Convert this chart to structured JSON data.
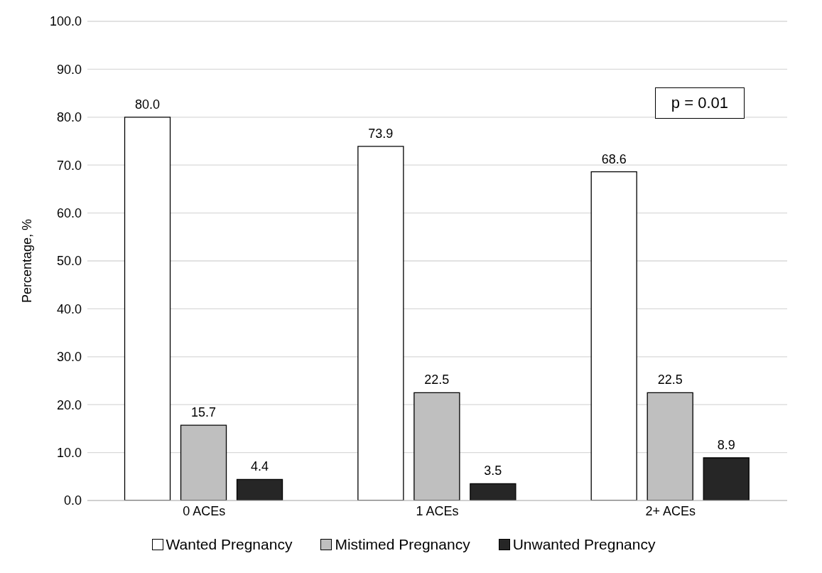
{
  "chart_data": {
    "type": "bar",
    "ylabel": "Percentage, %",
    "categories": [
      "0 ACEs",
      "1 ACEs",
      "2+ ACEs"
    ],
    "series": [
      {
        "name": "Wanted Pregnancy",
        "color": "#ffffff",
        "values": [
          80.0,
          73.9,
          68.6
        ],
        "value_labels": [
          "80.0",
          "73.9",
          "68.6"
        ]
      },
      {
        "name": "Mistimed Pregnancy",
        "color": "#bfbfbf",
        "values": [
          15.7,
          22.5,
          22.5
        ],
        "value_labels": [
          "15.7",
          "22.5",
          "22.5"
        ]
      },
      {
        "name": "Unwanted Pregnancy",
        "color": "#262626",
        "values": [
          4.4,
          3.5,
          8.9
        ],
        "value_labels": [
          "4.4",
          "3.5",
          "8.9"
        ]
      }
    ],
    "ylim": [
      0,
      100
    ],
    "yticks": [
      {
        "value": 0,
        "label": "0.0"
      },
      {
        "value": 10,
        "label": "10.0"
      },
      {
        "value": 20,
        "label": "20.0"
      },
      {
        "value": 30,
        "label": "30.0"
      },
      {
        "value": 40,
        "label": "40.0"
      },
      {
        "value": 50,
        "label": "50.0"
      },
      {
        "value": 60,
        "label": "60.0"
      },
      {
        "value": 70,
        "label": "70.0"
      },
      {
        "value": 80,
        "label": "80.0"
      },
      {
        "value": 90,
        "label": "90.0"
      },
      {
        "value": 100,
        "label": "100.0"
      }
    ],
    "grid": "y",
    "legend": "bottom",
    "annotations": [
      "p = 0.01"
    ]
  }
}
